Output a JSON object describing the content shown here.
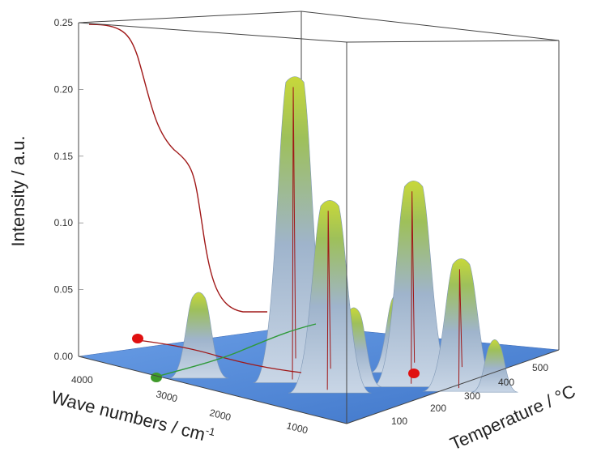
{
  "chart_data": {
    "type": "area",
    "ylabel": "Intensity / a.u.",
    "xlabel": "Wave numbers / cm",
    "xlabel_sup": "-1",
    "zlabel": "Temperature / °C",
    "y_ticks": [
      "0.00",
      "0.05",
      "0.10",
      "0.15",
      "0.20",
      "0.25"
    ],
    "wavenumber_ticks": [
      "4000",
      "3000",
      "2000",
      "1000"
    ],
    "temperature_ticks": [
      "100",
      "200",
      "300",
      "400",
      "500"
    ],
    "ylim": [
      0,
      0.25
    ],
    "wavenumber_range": [
      4400,
      600
    ],
    "temperature_range": [
      25,
      600
    ],
    "colors": {
      "floor": "#4f86d8",
      "peak_low": "#9fb6d1",
      "peak_high": "#8fbf3a",
      "tga_curve": "#a01818",
      "green_trace": "#2f9a3a",
      "marker_red": "#e01010",
      "marker_green": "#3f9a2a"
    },
    "peaks": [
      {
        "wavenumber": 3000,
        "temperature": 80,
        "intensity": 0.065
      },
      {
        "wavenumber": 2200,
        "temperature": 450,
        "intensity": 0.06
      },
      {
        "wavenumber": 2350,
        "temperature": 210,
        "intensity": 0.23
      },
      {
        "wavenumber": 1800,
        "temperature": 200,
        "intensity": 0.145
      },
      {
        "wavenumber": 1600,
        "temperature": 380,
        "intensity": 0.155
      },
      {
        "wavenumber": 1200,
        "temperature": 430,
        "intensity": 0.1
      },
      {
        "wavenumber": 1000,
        "temperature": 480,
        "intensity": 0.04
      },
      {
        "wavenumber": 1900,
        "temperature": 280,
        "intensity": 0.06
      }
    ]
  }
}
